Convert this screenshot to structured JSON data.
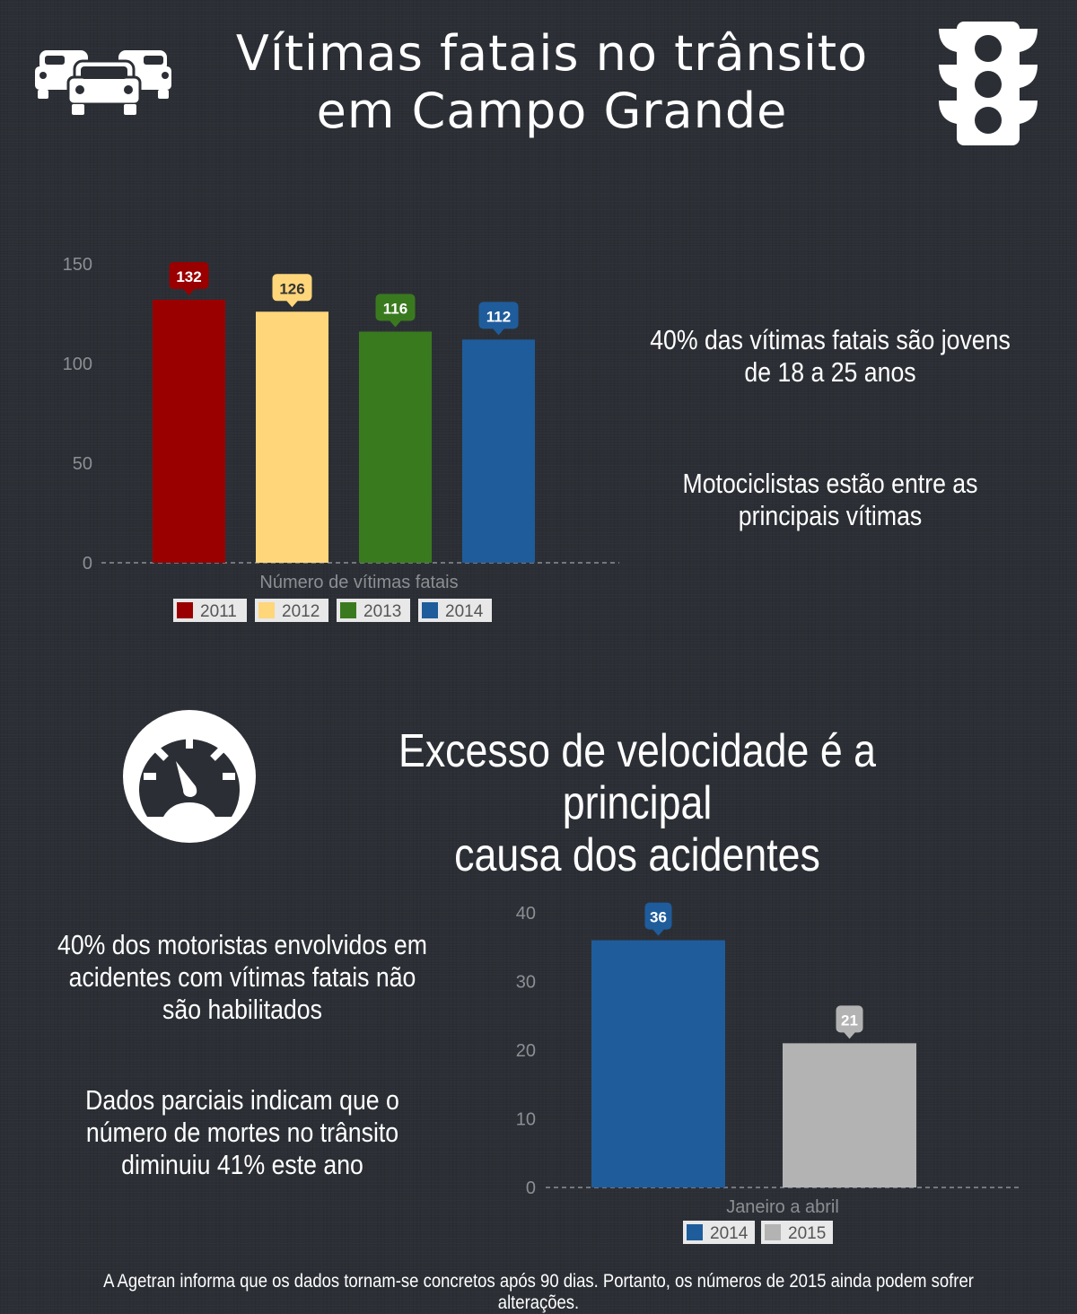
{
  "header": {
    "title_line1": "Vítimas fatais no trânsito",
    "title_line2": "em Campo Grande",
    "left_icon": "cars-icon",
    "right_icon": "traffic-light-icon"
  },
  "stats_top": [
    "40% das vítimas fatais são jovens de 18 a 25 anos",
    "Motociclistas estão entre as principais vítimas"
  ],
  "section2": {
    "icon": "speedometer-icon",
    "heading_line1": "Excesso de velocidade é a principal",
    "heading_line2": "causa dos acidentes"
  },
  "stats_bottom": [
    "40% dos motoristas envolvidos em acidentes com vítimas fatais não são habilitados",
    "Dados parciais indicam que o número de mortes no trânsito diminuiu 41% este ano"
  ],
  "footer": "A Agetran informa que os dados tornam-se concretos após 90 dias. Portanto, os números de 2015 ainda podem sofrer alterações.",
  "chart_data": [
    {
      "type": "bar",
      "xlabel": "Número de vítimas fatais",
      "ylim": [
        0,
        150
      ],
      "yticks": [
        0,
        50,
        100,
        150
      ],
      "legend": "bottom",
      "grid": false,
      "series": [
        {
          "name": "2011",
          "value": 132,
          "color": "#9a0000",
          "label_color": "#ffffff"
        },
        {
          "name": "2012",
          "value": 126,
          "color": "#ffd67a",
          "label_color": "#333333"
        },
        {
          "name": "2013",
          "value": 116,
          "color": "#3a7a1f",
          "label_color": "#ffffff"
        },
        {
          "name": "2014",
          "value": 112,
          "color": "#1f5c9c",
          "label_color": "#ffffff"
        }
      ]
    },
    {
      "type": "bar",
      "xlabel": "Janeiro a abril",
      "ylim": [
        0,
        40
      ],
      "yticks": [
        0,
        10,
        20,
        30,
        40
      ],
      "legend": "bottom",
      "grid": false,
      "series": [
        {
          "name": "2014",
          "value": 36,
          "color": "#1f5c9c",
          "label_color": "#ffffff"
        },
        {
          "name": "2015",
          "value": 21,
          "color": "#b3b3b3",
          "label_color": "#ffffff"
        }
      ]
    }
  ]
}
